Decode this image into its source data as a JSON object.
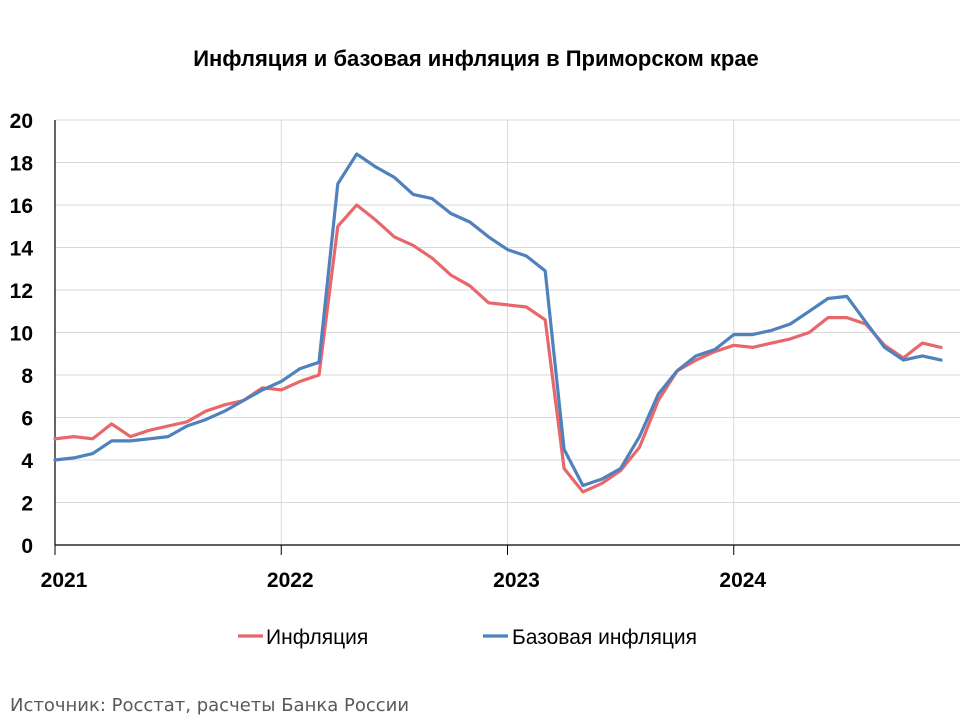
{
  "chart_data": {
    "type": "line",
    "title": "Инфляция и базовая инфляция в Приморском крае",
    "source": "Источник: Росстат, расчеты Банка России",
    "x_start": "2021-01",
    "x_end": "2024-12",
    "year_labels": [
      "2021",
      "2022",
      "2023",
      "2024"
    ],
    "ylim": [
      0,
      20
    ],
    "yticks": [
      "0",
      "2",
      "4",
      "6",
      "8",
      "10",
      "12",
      "14",
      "16",
      "18",
      "20"
    ],
    "grid": true,
    "legend_position": "bottom",
    "x": [
      "2021-01",
      "2021-02",
      "2021-03",
      "2021-04",
      "2021-05",
      "2021-06",
      "2021-07",
      "2021-08",
      "2021-09",
      "2021-10",
      "2021-11",
      "2021-12",
      "2022-01",
      "2022-02",
      "2022-03",
      "2022-04",
      "2022-05",
      "2022-06",
      "2022-07",
      "2022-08",
      "2022-09",
      "2022-10",
      "2022-11",
      "2022-12",
      "2023-01",
      "2023-02",
      "2023-03",
      "2023-04",
      "2023-05",
      "2023-06",
      "2023-07",
      "2023-08",
      "2023-09",
      "2023-10",
      "2023-11",
      "2023-12",
      "2024-01",
      "2024-02",
      "2024-03",
      "2024-04",
      "2024-05",
      "2024-06",
      "2024-07",
      "2024-08",
      "2024-09",
      "2024-10",
      "2024-11",
      "2024-12"
    ],
    "series": [
      {
        "name": "Инфляция",
        "color": "#E8676B",
        "values": [
          5.0,
          5.1,
          5.0,
          5.7,
          5.1,
          5.4,
          5.6,
          5.8,
          6.3,
          6.6,
          6.8,
          7.4,
          7.3,
          7.7,
          8.0,
          15.0,
          16.0,
          15.3,
          14.5,
          14.1,
          13.5,
          12.7,
          12.2,
          11.4,
          11.3,
          11.2,
          10.6,
          3.6,
          2.5,
          2.9,
          3.5,
          4.6,
          6.8,
          8.2,
          8.7,
          9.1,
          9.4,
          9.3,
          9.5,
          9.7,
          10.0,
          10.7,
          10.7,
          10.4,
          9.4,
          8.8,
          9.5,
          9.3
        ]
      },
      {
        "name": "Базовая инфляция",
        "color": "#4F81BD",
        "values": [
          4.0,
          4.1,
          4.3,
          4.9,
          4.9,
          5.0,
          5.1,
          5.6,
          5.9,
          6.3,
          6.8,
          7.3,
          7.7,
          8.3,
          8.6,
          17.0,
          18.4,
          17.8,
          17.3,
          16.5,
          16.3,
          15.6,
          15.2,
          14.5,
          13.9,
          13.6,
          12.9,
          4.5,
          2.8,
          3.1,
          3.6,
          5.1,
          7.1,
          8.2,
          8.9,
          9.2,
          9.9,
          9.9,
          10.1,
          10.4,
          11.0,
          11.6,
          11.7,
          10.5,
          9.3,
          8.7,
          8.9,
          8.7
        ]
      }
    ]
  }
}
